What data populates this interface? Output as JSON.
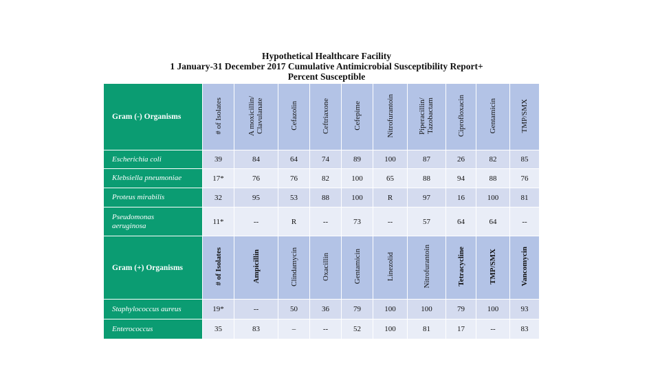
{
  "report": {
    "title_line1": "Hypothetical Healthcare Facility",
    "title_line2": "1 January-31 December 2017 Cumulative Antimicrobial Susceptibility Report+",
    "title_line3": "Percent Susceptible"
  },
  "gram_negative": {
    "header": "Gram (-) Organisms",
    "columns": [
      "# of Isolates",
      "A moxicillin/ Clavulanate",
      "Cefazolin",
      "Ceftriaxone",
      "Cefepime",
      "Nitrofurantoin",
      "Piperacillin/ Tazobactam",
      "Ciprofloxacin",
      "Gentamicin",
      "TMP/SMX"
    ],
    "rows": [
      {
        "organism": "Escherichia coli",
        "values": [
          "39",
          "84",
          "64",
          "74",
          "89",
          "100",
          "87",
          "26",
          "82",
          "85"
        ]
      },
      {
        "organism": "Klebsiella pneumoniae",
        "values": [
          "17*",
          "76",
          "76",
          "82",
          "100",
          "65",
          "88",
          "94",
          "88",
          "76"
        ]
      },
      {
        "organism": "Proteus mirabilis",
        "values": [
          "32",
          "95",
          "53",
          "88",
          "100",
          "R",
          "97",
          "16",
          "100",
          "81"
        ]
      },
      {
        "organism": "Pseudomonas aeruginosa",
        "values": [
          "11*",
          "--",
          "R",
          "--",
          "73",
          "--",
          "57",
          "64",
          "64",
          "--"
        ]
      }
    ]
  },
  "gram_positive": {
    "header": "Gram (+) Organisms",
    "columns": [
      "# of Isolates",
      "Ampicillin",
      "Clindamycin",
      "Oxacillin",
      "Gentamicin",
      "Linezolid",
      "Nitrofurantoin",
      "Tetracycline",
      "TMP/SMX",
      "Vancomycin"
    ],
    "rows": [
      {
        "organism": "Staphylococcus aureus",
        "values": [
          "19*",
          "--",
          "50",
          "36",
          "79",
          "100",
          "100",
          "79",
          "100",
          "93"
        ]
      },
      {
        "organism": "Enterococcus",
        "values": [
          "35",
          "83",
          "–",
          "--",
          "52",
          "100",
          "81",
          "17",
          "--",
          "83"
        ]
      }
    ]
  }
}
